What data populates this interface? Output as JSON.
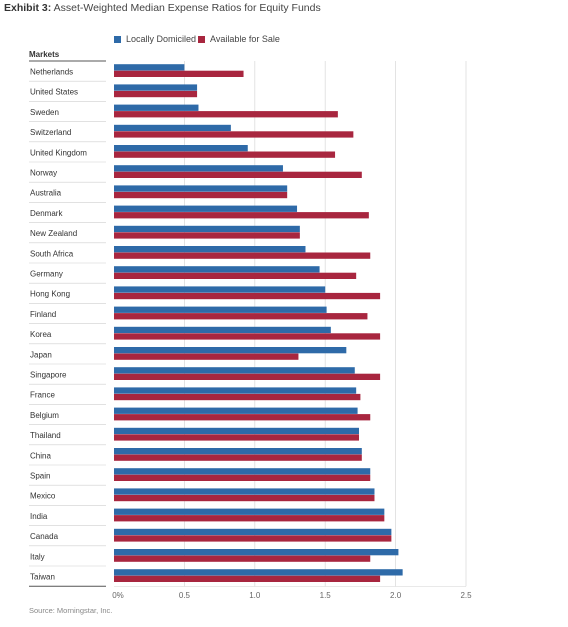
{
  "header": {
    "exhibit": "Exhibit 3:",
    "title": "Asset-Weighted Median Expense Ratios for Equity Funds"
  },
  "legend": {
    "items": [
      {
        "label": "Locally Domiciled",
        "color": "#2e6aa8"
      },
      {
        "label": "Available for Sale",
        "color": "#a8263f"
      }
    ]
  },
  "markets_label": "Markets",
  "source": "Source: Morningstar, Inc.",
  "chart_data": {
    "type": "bar",
    "orientation": "horizontal",
    "categories": [
      "Netherlands",
      "United States",
      "Sweden",
      "Switzerland",
      "United Kingdom",
      "Norway",
      "Australia",
      "Denmark",
      "New Zealand",
      "South Africa",
      "Germany",
      "Hong Kong",
      "Finland",
      "Korea",
      "Japan",
      "Singapore",
      "France",
      "Belgium",
      "Thailand",
      "China",
      "Spain",
      "Mexico",
      "India",
      "Canada",
      "Italy",
      "Taiwan"
    ],
    "series": [
      {
        "name": "Locally Domiciled",
        "color": "#2e6aa8",
        "values": [
          0.5,
          0.59,
          0.6,
          0.83,
          0.95,
          1.2,
          1.23,
          1.3,
          1.32,
          1.36,
          1.46,
          1.5,
          1.51,
          1.54,
          1.65,
          1.71,
          1.72,
          1.73,
          1.74,
          1.76,
          1.82,
          1.85,
          1.92,
          1.97,
          2.02,
          2.05
        ]
      },
      {
        "name": "Available for Sale",
        "color": "#a8263f",
        "values": [
          0.92,
          0.59,
          1.59,
          1.7,
          1.57,
          1.76,
          1.23,
          1.81,
          1.32,
          1.82,
          1.72,
          1.89,
          1.8,
          1.89,
          1.31,
          1.89,
          1.75,
          1.82,
          1.74,
          1.76,
          1.82,
          1.85,
          1.92,
          1.97,
          1.82,
          1.89
        ]
      }
    ],
    "xlim": [
      0,
      2.5
    ],
    "ticks": [
      "0%",
      "0.5",
      "1.0",
      "1.5",
      "2.0",
      "2.5"
    ],
    "tick_values": [
      0,
      0.5,
      1.0,
      1.5,
      2.0,
      2.5
    ],
    "grid": true,
    "legend_position": "top"
  }
}
